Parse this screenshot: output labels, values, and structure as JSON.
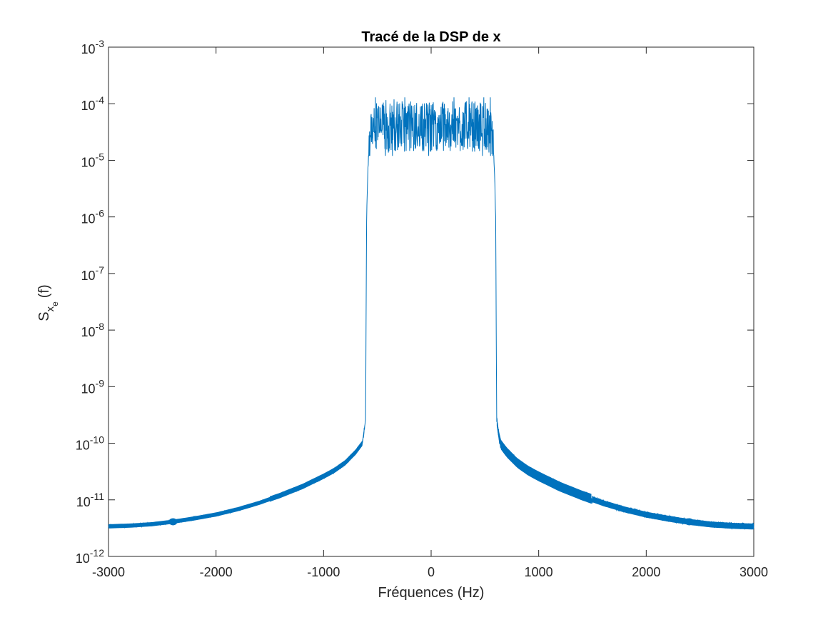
{
  "chart_data": {
    "type": "line",
    "title": "Tracé de la DSP de x",
    "xlabel": "Fréquences (Hz)",
    "ylabel": {
      "main": "S",
      "sub1": "x",
      "sub2": "e",
      "tail": "(f)"
    },
    "xlim": [
      -3000,
      3000
    ],
    "ylim": [
      1e-12,
      0.001
    ],
    "yscale": "log",
    "grid": false,
    "legend": "none",
    "color": "#0072BD",
    "xticks": [
      -3000,
      -2000,
      -1000,
      0,
      1000,
      2000,
      3000
    ],
    "xtick_labels": [
      "-3000",
      "-2000",
      "-1000",
      "0",
      "1000",
      "2000",
      "3000"
    ],
    "yticks": [
      {
        "value": 1e-12,
        "base": "10",
        "exp": "-12"
      },
      {
        "value": 1e-11,
        "base": "10",
        "exp": "-11"
      },
      {
        "value": 1e-10,
        "base": "10",
        "exp": "-10"
      },
      {
        "value": 1e-09,
        "base": "10",
        "exp": "-9"
      },
      {
        "value": 1e-08,
        "base": "10",
        "exp": "-8"
      },
      {
        "value": 1e-07,
        "base": "10",
        "exp": "-7"
      },
      {
        "value": 1e-06,
        "base": "10",
        "exp": "-6"
      },
      {
        "value": 1e-05,
        "base": "10",
        "exp": "-5"
      },
      {
        "value": 0.0001,
        "base": "10",
        "exp": "-4"
      },
      {
        "value": 0.001,
        "base": "10",
        "exp": "-3"
      }
    ],
    "series": [
      {
        "x": [
          -3000,
          -2800,
          -2600,
          -2400,
          -2200,
          -2000,
          -1800,
          -1600,
          -1400,
          -1200,
          -1000,
          -900,
          -800,
          -700,
          -640,
          -610,
          -605,
          -600,
          -590,
          -580,
          -560,
          -540,
          -500,
          -400,
          -300,
          -200,
          -100,
          0,
          100,
          200,
          300,
          400,
          500,
          540,
          560,
          580,
          590,
          600,
          605,
          610,
          640,
          700,
          800,
          900,
          1000,
          1200,
          1400,
          1600,
          1800,
          2000,
          2200,
          2400,
          2600,
          2800,
          3000
        ],
        "y": [
          3.4e-12,
          3.5e-12,
          3.7e-12,
          4.1e-12,
          4.7e-12,
          5.5e-12,
          6.8e-12,
          8.8e-12,
          1.2e-11,
          1.7e-11,
          2.6e-11,
          3.3e-11,
          4.5e-11,
          7e-11,
          1e-10,
          2.5e-10,
          1e-08,
          1e-06,
          5e-06,
          1.2e-05,
          2.5e-05,
          3.5e-05,
          4e-05,
          4e-05,
          4e-05,
          4e-05,
          4e-05,
          4e-05,
          4e-05,
          4e-05,
          4e-05,
          4e-05,
          4e-05,
          3.5e-05,
          2.5e-05,
          1.2e-05,
          5e-06,
          1e-06,
          1e-08,
          2.5e-10,
          1e-10,
          7e-11,
          4.5e-11,
          3.3e-11,
          2.6e-11,
          1.7e-11,
          1.2e-11,
          8.8e-12,
          6.8e-12,
          5.5e-12,
          4.7e-12,
          4.1e-12,
          3.7e-12,
          3.5e-12,
          3.4e-12
        ],
        "noise_band_passband": [
          1.2e-05,
          0.00013
        ],
        "marker_points": [
          {
            "x": -2400,
            "y": 4.1e-12
          },
          {
            "x": 2400,
            "y": 4.1e-12
          }
        ]
      }
    ]
  }
}
